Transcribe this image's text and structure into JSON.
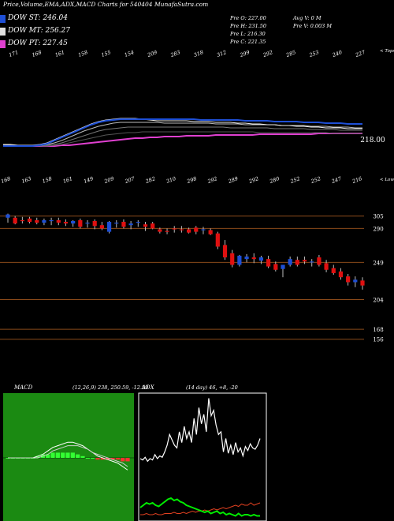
{
  "title": "Price,Volume,EMA,ADX,MACD Charts for 540404  MunafaSutra.com",
  "legend": [
    {
      "label": "DOW ST: 246.04",
      "color": "#1e4fd6"
    },
    {
      "label": "DOW MT: 256.27",
      "color": "#e0e0e0"
    },
    {
      "label": "DOW PT: 227.45",
      "color": "#e040d0"
    }
  ],
  "quote": {
    "open": "Pre  O: 227.00",
    "high": "Pre  H: 231.50",
    "low": "Pre  L: 216.30",
    "close": "Pre  C: 221.35",
    "avg_vol": "Avg V: 0  M",
    "pre_vol": "Pre  V: 0.003 M"
  },
  "chart_data": [
    {
      "type": "line",
      "name": "ema-panel",
      "top_ticks": [
        "171",
        "168",
        "161",
        "158",
        "155",
        "154",
        "209",
        "283",
        "318",
        "312",
        "299",
        "292",
        "285",
        "253",
        "240",
        "227"
      ],
      "top_tail": "< Tops",
      "bottom_ticks": [
        "168",
        "163",
        "158",
        "161",
        "149",
        "209",
        "207",
        "282",
        "310",
        "298",
        "292",
        "289",
        "292",
        "280",
        "252",
        "252",
        "247",
        "216"
      ],
      "bottom_tail": "< Lows",
      "price_label": "218.00",
      "series": [
        {
          "color": "#f0f0f0",
          "values": [
            183,
            183,
            182,
            182,
            182,
            183,
            185,
            189,
            193,
            197,
            201,
            205,
            209,
            212,
            214,
            215,
            216,
            216,
            216,
            215,
            214,
            213,
            213,
            213,
            213,
            213,
            212,
            212,
            212,
            211,
            211,
            211,
            210,
            210,
            209,
            209,
            208,
            208,
            207,
            207,
            206,
            206,
            205,
            205,
            204,
            204,
            204,
            203,
            203,
            203
          ]
        },
        {
          "color": "#1e4fd6",
          "values": [
            181,
            181,
            181,
            181,
            181,
            182,
            184,
            188,
            192,
            196,
            200,
            204,
            208,
            211,
            213,
            214,
            215,
            215,
            215,
            215,
            215,
            215,
            215,
            215,
            215,
            215,
            215,
            214,
            214,
            214,
            214,
            214,
            214,
            213,
            213,
            213,
            213,
            212,
            212,
            212,
            212,
            211,
            211,
            211,
            210,
            210,
            210,
            209,
            209,
            209
          ]
        },
        {
          "color": "#bbbbbb",
          "values": [
            182,
            182,
            182,
            182,
            182,
            182,
            183,
            185,
            188,
            192,
            196,
            200,
            203,
            206,
            208,
            210,
            211,
            211,
            211,
            211,
            211,
            211,
            210,
            210,
            210,
            210,
            210,
            210,
            210,
            209,
            209,
            209,
            209,
            208,
            208,
            208,
            208,
            208,
            207,
            207,
            207,
            207,
            206,
            206,
            206,
            205,
            205,
            205,
            204,
            204
          ]
        },
        {
          "color": "#777777",
          "values": [
            181,
            181,
            181,
            181,
            181,
            181,
            182,
            183,
            185,
            188,
            191,
            194,
            197,
            200,
            202,
            203,
            204,
            205,
            205,
            205,
            205,
            205,
            205,
            205,
            205,
            205,
            205,
            205,
            205,
            205,
            205,
            204,
            204,
            204,
            204,
            204,
            204,
            203,
            203,
            203,
            203,
            203,
            202,
            202,
            202,
            202,
            201,
            201,
            201,
            201
          ]
        },
        {
          "color": "#555555",
          "values": [
            181,
            181,
            181,
            181,
            181,
            181,
            181,
            182,
            183,
            185,
            187,
            189,
            191,
            193,
            195,
            196,
            197,
            198,
            198,
            199,
            199,
            199,
            199,
            199,
            199,
            199,
            199,
            199,
            199,
            199,
            199,
            199,
            199,
            199,
            199,
            198,
            198,
            198,
            198,
            198,
            198,
            198,
            198,
            198,
            198,
            197,
            197,
            197,
            197,
            197
          ]
        },
        {
          "color": "#e040d0",
          "values": [
            181,
            181,
            181,
            181,
            181,
            181,
            181,
            181,
            182,
            182,
            183,
            184,
            185,
            186,
            187,
            188,
            189,
            190,
            191,
            191,
            192,
            192,
            193,
            193,
            193,
            194,
            194,
            194,
            194,
            195,
            195,
            195,
            195,
            195,
            195,
            196,
            196,
            196,
            196,
            196,
            196,
            196,
            196,
            197,
            197,
            197,
            197,
            197,
            197,
            197
          ]
        }
      ]
    },
    {
      "type": "candlestick",
      "name": "price-panel",
      "ylim": [
        150,
        320
      ],
      "ytick_labels": [
        "305",
        "290",
        "249",
        "204",
        "168",
        "156"
      ],
      "ytick_values": [
        305,
        290,
        249,
        204,
        168,
        156
      ],
      "candles": [
        {
          "o": 303,
          "h": 308,
          "l": 297,
          "c": 307
        },
        {
          "o": 303,
          "h": 305,
          "l": 295,
          "c": 296
        },
        {
          "o": 300,
          "h": 304,
          "l": 296,
          "c": 299
        },
        {
          "o": 302,
          "h": 304,
          "l": 296,
          "c": 298
        },
        {
          "o": 300,
          "h": 303,
          "l": 295,
          "c": 297
        },
        {
          "o": 297,
          "h": 302,
          "l": 294,
          "c": 300
        },
        {
          "o": 299,
          "h": 303,
          "l": 294,
          "c": 300
        },
        {
          "o": 300,
          "h": 303,
          "l": 294,
          "c": 297
        },
        {
          "o": 298,
          "h": 301,
          "l": 293,
          "c": 296
        },
        {
          "o": 296,
          "h": 300,
          "l": 292,
          "c": 299
        },
        {
          "o": 300,
          "h": 302,
          "l": 290,
          "c": 292
        },
        {
          "o": 297,
          "h": 300,
          "l": 291,
          "c": 297
        },
        {
          "o": 299,
          "h": 301,
          "l": 289,
          "c": 293
        },
        {
          "o": 294,
          "h": 298,
          "l": 288,
          "c": 290
        },
        {
          "o": 286,
          "h": 299,
          "l": 284,
          "c": 298
        },
        {
          "o": 296,
          "h": 300,
          "l": 291,
          "c": 297
        },
        {
          "o": 298,
          "h": 301,
          "l": 290,
          "c": 292
        },
        {
          "o": 294,
          "h": 299,
          "l": 289,
          "c": 296
        },
        {
          "o": 297,
          "h": 300,
          "l": 292,
          "c": 298
        },
        {
          "o": 295,
          "h": 298,
          "l": 287,
          "c": 292
        },
        {
          "o": 296,
          "h": 298,
          "l": 289,
          "c": 290
        },
        {
          "o": 289,
          "h": 291,
          "l": 284,
          "c": 286
        },
        {
          "o": 287,
          "h": 290,
          "l": 283,
          "c": 286
        },
        {
          "o": 290,
          "h": 293,
          "l": 285,
          "c": 289
        },
        {
          "o": 289,
          "h": 293,
          "l": 285,
          "c": 288
        },
        {
          "o": 289,
          "h": 291,
          "l": 284,
          "c": 285
        },
        {
          "o": 291,
          "h": 293,
          "l": 283,
          "c": 286
        },
        {
          "o": 288,
          "h": 292,
          "l": 283,
          "c": 289
        },
        {
          "o": 288,
          "h": 290,
          "l": 282,
          "c": 283
        },
        {
          "o": 284,
          "h": 286,
          "l": 265,
          "c": 268
        },
        {
          "o": 270,
          "h": 276,
          "l": 252,
          "c": 255
        },
        {
          "o": 260,
          "h": 264,
          "l": 243,
          "c": 246
        },
        {
          "o": 246,
          "h": 258,
          "l": 244,
          "c": 257
        },
        {
          "o": 253,
          "h": 259,
          "l": 249,
          "c": 256
        },
        {
          "o": 255,
          "h": 260,
          "l": 248,
          "c": 253
        },
        {
          "o": 251,
          "h": 257,
          "l": 247,
          "c": 255
        },
        {
          "o": 253,
          "h": 257,
          "l": 242,
          "c": 244
        },
        {
          "o": 247,
          "h": 250,
          "l": 238,
          "c": 240
        },
        {
          "o": 241,
          "h": 245,
          "l": 231,
          "c": 246
        },
        {
          "o": 246,
          "h": 256,
          "l": 244,
          "c": 253
        },
        {
          "o": 252,
          "h": 256,
          "l": 244,
          "c": 246
        },
        {
          "o": 252,
          "h": 256,
          "l": 247,
          "c": 250
        },
        {
          "o": 249,
          "h": 253,
          "l": 244,
          "c": 250
        },
        {
          "o": 255,
          "h": 258,
          "l": 244,
          "c": 246
        },
        {
          "o": 248,
          "h": 252,
          "l": 237,
          "c": 240
        },
        {
          "o": 242,
          "h": 246,
          "l": 234,
          "c": 236
        },
        {
          "o": 238,
          "h": 242,
          "l": 228,
          "c": 231
        },
        {
          "o": 232,
          "h": 235,
          "l": 221,
          "c": 225
        },
        {
          "o": 225,
          "h": 232,
          "l": 219,
          "c": 228
        },
        {
          "o": 227,
          "h": 231,
          "l": 216,
          "c": 221
        }
      ]
    },
    {
      "type": "line",
      "name": "macd-panel",
      "label": "MACD",
      "params": "(12,26,9) 238, 250.59, -12.59",
      "series": [
        {
          "color": "#ffffff",
          "values": [
            0,
            0,
            0,
            0,
            0,
            0,
            1,
            2,
            4,
            6,
            7,
            8,
            9,
            9,
            8,
            7,
            5,
            3,
            1,
            0,
            -1,
            -2,
            -3,
            -5,
            -7
          ]
        },
        {
          "color": "#cccccc",
          "values": [
            0,
            0,
            0,
            0,
            0,
            0,
            0,
            1,
            2,
            4,
            5,
            6,
            7,
            7,
            7,
            6,
            5,
            3,
            2,
            1,
            0,
            -1,
            -2,
            -3,
            -5
          ]
        }
      ],
      "histogram": [
        0,
        0,
        0,
        0,
        0,
        0,
        1,
        2,
        2,
        3,
        3,
        3,
        3,
        3,
        2,
        1,
        0,
        0,
        -1,
        -1,
        -1,
        -1,
        -1,
        -2,
        -2
      ]
    },
    {
      "type": "line",
      "name": "adx-panel",
      "label": "ADX",
      "params": "(14  day) 46, +8, -20",
      "series": [
        {
          "color": "#ffffff",
          "values": [
            10,
            9,
            11,
            8,
            10,
            9,
            13,
            10,
            12,
            11,
            15,
            20,
            28,
            24,
            20,
            18,
            30,
            22,
            34,
            25,
            30,
            22,
            40,
            28,
            48,
            36,
            43,
            30,
            55,
            42,
            46,
            35,
            28,
            30,
            15,
            25,
            14,
            20,
            13,
            22,
            15,
            18,
            12,
            19,
            16,
            21,
            18,
            17,
            20,
            25
          ]
        },
        {
          "color": "#00ee00",
          "values": [
            8,
            10,
            12,
            11,
            12,
            10,
            9,
            11,
            13,
            15,
            16,
            14,
            15,
            13,
            12,
            10,
            9,
            8,
            7,
            6,
            5,
            4,
            5,
            3,
            4,
            5,
            3,
            4,
            2,
            3,
            2,
            1,
            3,
            1,
            2,
            2,
            1,
            2,
            1,
            1
          ]
        },
        {
          "color": "#e04020",
          "values": [
            2,
            2,
            3,
            2,
            2,
            3,
            2,
            2,
            3,
            3,
            3,
            4,
            3,
            3,
            4,
            3,
            4,
            5,
            4,
            5,
            5,
            6,
            5,
            6,
            7,
            6,
            7,
            8,
            7,
            8,
            9,
            10,
            9,
            11,
            10,
            10,
            12,
            10,
            11,
            12
          ]
        }
      ]
    }
  ]
}
